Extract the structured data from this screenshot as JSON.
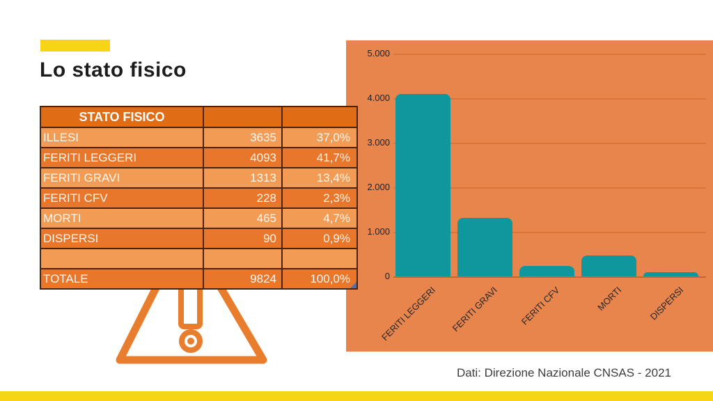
{
  "slide": {
    "title": "Lo stato fisico",
    "footer_source": "Dati: Direzione Nazionale CNSAS - 2021"
  },
  "table": {
    "header": "STATO FISICO",
    "rows": [
      {
        "label": "ILLESI",
        "value": "3635",
        "percent": "37,0%"
      },
      {
        "label": "FERITI LEGGERI",
        "value": "4093",
        "percent": "41,7%"
      },
      {
        "label": "FERITI GRAVI",
        "value": "1313",
        "percent": "13,4%"
      },
      {
        "label": "FERITI CFV",
        "value": "228",
        "percent": "2,3%"
      },
      {
        "label": "MORTI",
        "value": "465",
        "percent": "4,7%"
      },
      {
        "label": "DISPERSI",
        "value": "90",
        "percent": "0,9%"
      },
      {
        "label": "",
        "value": "",
        "percent": ""
      },
      {
        "label": "TOTALE",
        "value": "9824",
        "percent": "100,0%"
      }
    ]
  },
  "chart_data": {
    "type": "bar",
    "categories": [
      "FERITI LEGGERI",
      "FERITI GRAVI",
      "FERITI CFV",
      "MORTI",
      "DISPERSI"
    ],
    "values": [
      4093,
      1313,
      228,
      465,
      90
    ],
    "title": "",
    "xlabel": "",
    "ylabel": "",
    "ylim": [
      0,
      5000
    ],
    "y_tick_labels": [
      "5.000",
      "4.000",
      "3.000",
      "2.000",
      "1.000",
      "0"
    ],
    "grid": true,
    "legend": false,
    "bar_color": "#10979E",
    "plot_background": "#E8854C"
  },
  "colors": {
    "accent_yellow": "#F7D414",
    "table_header_bg": "#E06C15",
    "table_row_dark": "#E8772B",
    "table_row_light": "#F29B55",
    "table_border": "#4a230a",
    "chart_background": "#E8854C",
    "bar_teal": "#10979E",
    "gridline": "#DB7438",
    "warning_orange": "#E87D2E",
    "corner_flag_blue": "#4472C4",
    "title_text": "#1c1c1c",
    "footer_text": "#3c3c3c"
  },
  "icons": {
    "warning_triangle": "exclamation-triangle"
  }
}
